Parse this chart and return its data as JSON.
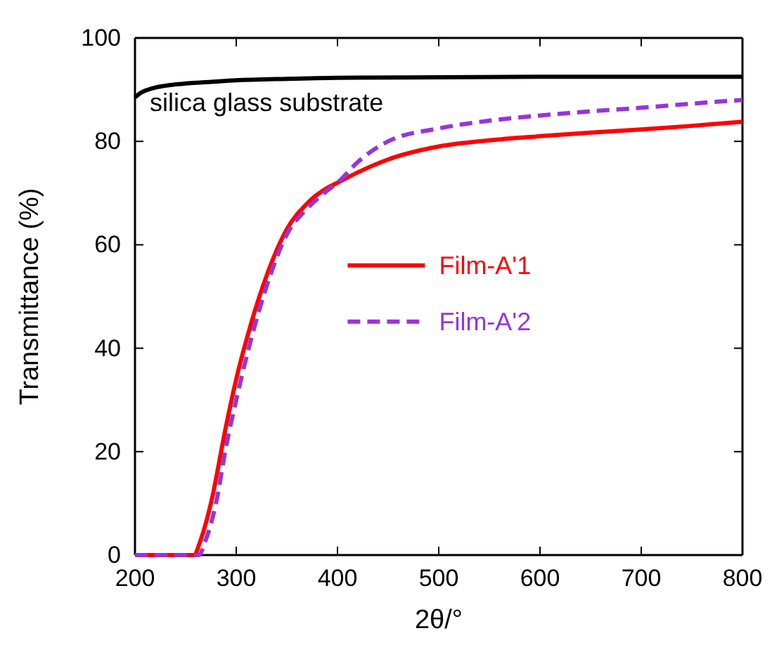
{
  "chart_data": {
    "type": "line",
    "xlabel": "2θ/°",
    "ylabel": "Transmittance (%)",
    "xlim": [
      200,
      800
    ],
    "ylim": [
      0,
      100
    ],
    "xticks": [
      200,
      300,
      400,
      500,
      600,
      700,
      800
    ],
    "yticks": [
      0,
      20,
      40,
      60,
      80,
      100
    ],
    "grid": false,
    "legend": "right",
    "marker": "none",
    "annotations": [
      {
        "text": "silica glass substrate",
        "x": 330,
        "y": 91.8
      }
    ],
    "series": [
      {
        "color": "#000000",
        "line_style": "solid",
        "x": [
          200,
          205,
          210,
          220,
          235,
          250,
          275,
          300,
          350,
          400,
          500,
          600,
          700,
          800
        ],
        "values": [
          88.5,
          89.3,
          89.8,
          90.4,
          90.9,
          91.2,
          91.5,
          91.8,
          92.1,
          92.3,
          92.4,
          92.5,
          92.5,
          92.5
        ]
      },
      {
        "name": "Film-A'1",
        "color": "#ff0000",
        "line_style": "solid",
        "x": [
          200,
          250,
          258,
          265,
          275,
          290,
          300,
          315,
          330,
          350,
          370,
          390,
          400,
          420,
          450,
          500,
          550,
          600,
          650,
          700,
          750,
          800
        ],
        "values": [
          0,
          0,
          0,
          3,
          10,
          25,
          34,
          45,
          54,
          63,
          68,
          71,
          72,
          74,
          76.5,
          79,
          80.2,
          81,
          81.7,
          82.3,
          83,
          83.8
        ]
      },
      {
        "name": "Film-A'2",
        "color": "#9933dd",
        "line_style": "dashed",
        "x": [
          200,
          250,
          263,
          270,
          280,
          290,
          300,
          315,
          330,
          350,
          370,
          390,
          400,
          420,
          450,
          500,
          550,
          600,
          650,
          700,
          750,
          800
        ],
        "values": [
          0,
          0,
          0,
          3,
          10,
          21,
          30,
          42,
          52,
          62,
          67,
          70.5,
          72,
          76,
          80,
          82.5,
          84,
          85,
          85.8,
          86.5,
          87.3,
          88
        ]
      }
    ]
  }
}
